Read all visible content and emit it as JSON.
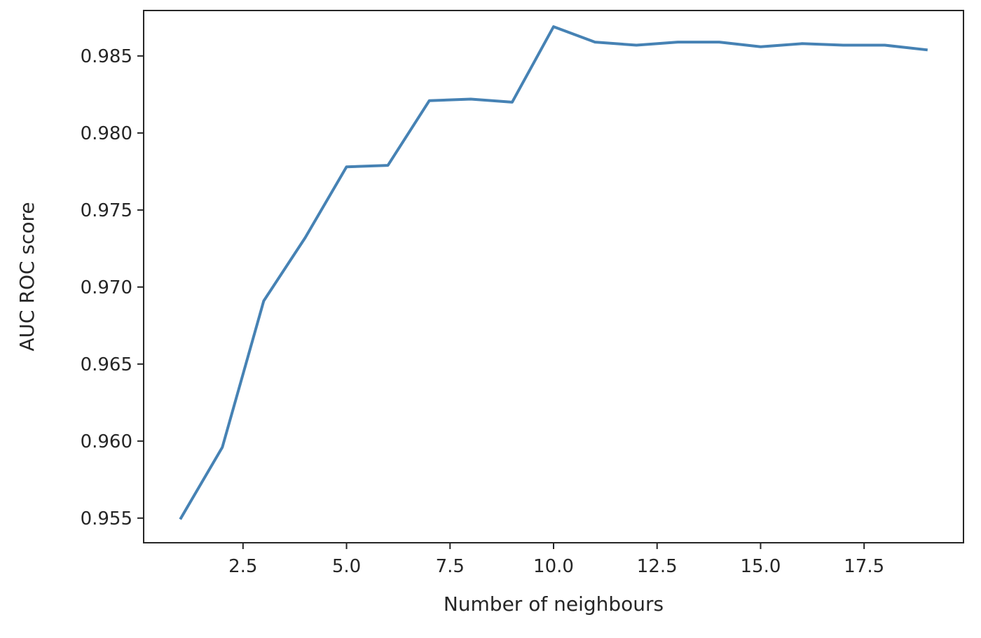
{
  "chart_data": {
    "type": "line",
    "title": "",
    "xlabel": "Number of neighbours",
    "ylabel": "AUC ROC score",
    "xlim": [
      0.1,
      19.9
    ],
    "ylim": [
      0.9534,
      0.98795
    ],
    "x_ticks": [
      2.5,
      5.0,
      7.5,
      10.0,
      12.5,
      15.0,
      17.5
    ],
    "x_tick_labels": [
      "2.5",
      "5.0",
      "7.5",
      "10.0",
      "12.5",
      "15.0",
      "17.5"
    ],
    "y_ticks": [
      0.955,
      0.96,
      0.965,
      0.97,
      0.975,
      0.98,
      0.985
    ],
    "y_tick_labels": [
      "0.955",
      "0.960",
      "0.965",
      "0.970",
      "0.975",
      "0.980",
      "0.985"
    ],
    "grid": false,
    "legend": false,
    "series": [
      {
        "color": "#4682b4",
        "x": [
          1,
          2,
          3,
          4,
          5,
          6,
          7,
          8,
          9,
          10,
          11,
          12,
          13,
          14,
          15,
          16,
          17,
          18,
          19
        ],
        "y": [
          0.955,
          0.9596,
          0.9691,
          0.9732,
          0.9778,
          0.9779,
          0.9821,
          0.9822,
          0.982,
          0.9869,
          0.9859,
          0.9857,
          0.9859,
          0.9859,
          0.9856,
          0.9858,
          0.9857,
          0.9857,
          0.9854
        ]
      }
    ]
  }
}
